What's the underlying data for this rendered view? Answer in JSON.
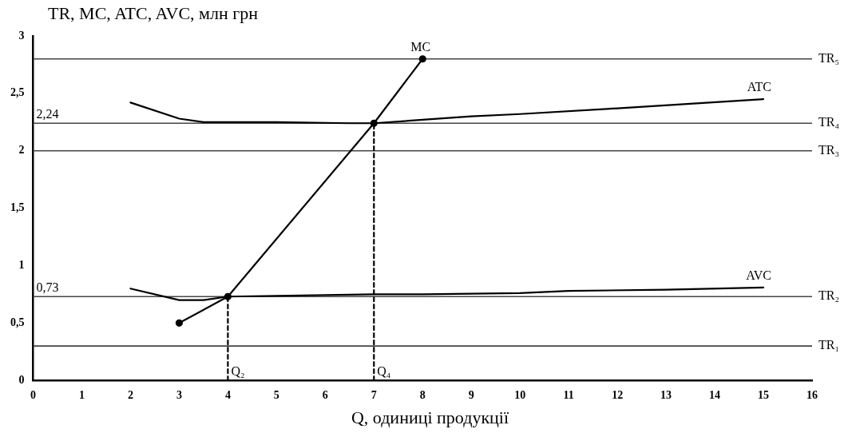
{
  "chart_data": {
    "type": "line",
    "ylabel": "TR, MC, ATC, AVC, млн грн",
    "xlabel": "Q, одиниці продукції",
    "xlim": [
      0,
      16
    ],
    "xticks": [
      0,
      1,
      2,
      3,
      4,
      5,
      6,
      7,
      8,
      9,
      10,
      11,
      12,
      13,
      14,
      15,
      16
    ],
    "ylim": [
      0,
      3
    ],
    "yticks": [
      0,
      {
        "value": 0.5,
        "label": "0,5"
      },
      1,
      {
        "value": 1.5,
        "label": "1,5"
      },
      2,
      {
        "value": 2.5,
        "label": "2,5"
      },
      3
    ],
    "grid": false,
    "legend": false,
    "series": [
      {
        "name": "MC",
        "color": "#000000",
        "marker": "circle",
        "x": [
          3,
          4,
          7,
          8
        ],
        "values": [
          0.5,
          0.73,
          2.24,
          2.8
        ]
      },
      {
        "name": "ATC",
        "color": "#000000",
        "marker": "none",
        "x": [
          2,
          3,
          3.5,
          5,
          6.5,
          7,
          9,
          10,
          12,
          15
        ],
        "values": [
          2.42,
          2.28,
          2.25,
          2.25,
          2.24,
          2.24,
          2.3,
          2.32,
          2.37,
          2.45
        ]
      },
      {
        "name": "AVC",
        "color": "#000000",
        "marker": "none",
        "x": [
          2,
          3,
          3.5,
          4,
          7,
          8,
          10,
          11,
          13,
          15
        ],
        "values": [
          0.8,
          0.7,
          0.7,
          0.73,
          0.75,
          0.75,
          0.76,
          0.78,
          0.79,
          0.81
        ]
      },
      {
        "color": "#000000",
        "marker": "none",
        "line_style": "dashed",
        "x": [
          4,
          4
        ],
        "values": [
          0,
          0.73
        ]
      },
      {
        "color": "#000000",
        "marker": "none",
        "line_style": "dashed",
        "x": [
          7,
          7
        ],
        "values": [
          0,
          2.24
        ]
      }
    ],
    "ref_lines": [
      {
        "axis": "y",
        "value": 0.3,
        "label": "TR₁",
        "color": "#444444"
      },
      {
        "axis": "y",
        "value": 0.73,
        "label": "TR₂",
        "color": "#444444"
      },
      {
        "axis": "y",
        "value": 2,
        "label": "TR₃",
        "color": "#444444"
      },
      {
        "axis": "y",
        "value": 2.24,
        "label": "TR₄",
        "color": "#444444"
      },
      {
        "axis": "y",
        "value": 2.8,
        "label": "TR₅",
        "color": "#444444"
      }
    ],
    "annotations": [
      {
        "text": "2,24",
        "x": 0,
        "y": 2.24
      },
      {
        "text": "0,73",
        "x": 0,
        "y": 0.73
      },
      {
        "text": "Q₂",
        "x": 4,
        "y": 0
      },
      {
        "text": "Q₄",
        "x": 7,
        "y": 0
      }
    ]
  }
}
